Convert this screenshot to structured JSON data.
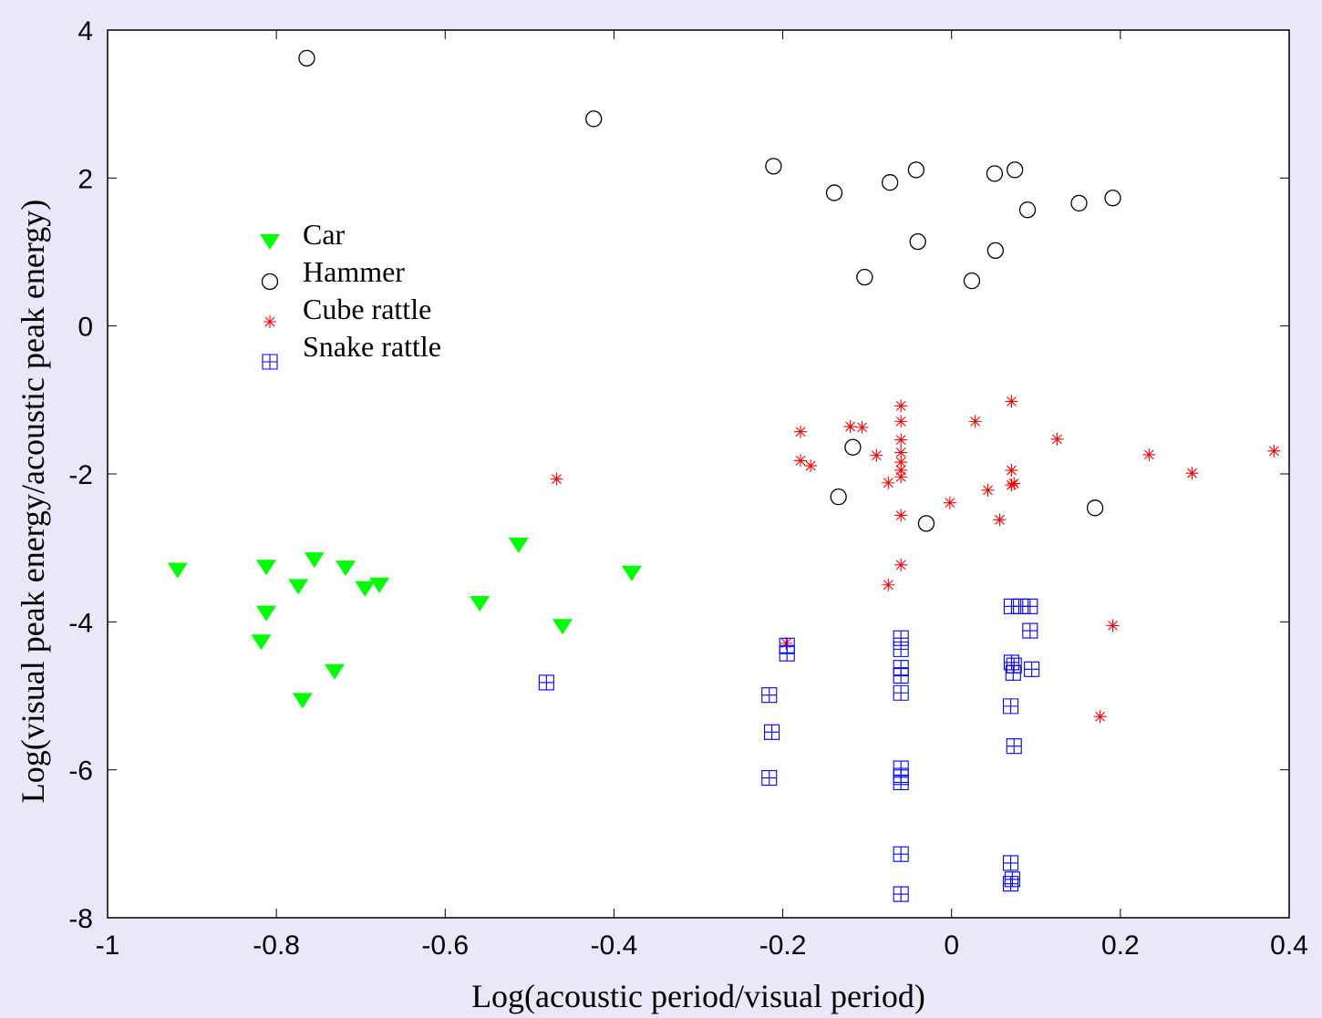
{
  "chart_data": {
    "type": "scatter",
    "xlabel": "Log(acoustic period/visual period)",
    "ylabel": "Log(visual peak energy/acoustic peak energy)",
    "xlim": [
      -1,
      0.4
    ],
    "ylim": [
      -8,
      4
    ],
    "xticks": [
      -1,
      -0.8,
      -0.6,
      -0.4,
      -0.2,
      0,
      0.2,
      0.4
    ],
    "yticks": [
      -8,
      -6,
      -4,
      -2,
      0,
      2,
      4
    ],
    "series": [
      {
        "name": "Car",
        "color": "#00ff00",
        "marker": "triangle-down",
        "x": [
          -0.917,
          -0.812,
          -0.812,
          -0.818,
          -0.774,
          -0.755,
          -0.718,
          -0.695,
          -0.678,
          -0.731,
          -0.769,
          -0.559,
          -0.513,
          -0.461,
          -0.379
        ],
        "values": [
          -3.3,
          -3.26,
          -3.88,
          -4.27,
          -3.52,
          -3.16,
          -3.27,
          -3.55,
          -3.5,
          -4.67,
          -5.06,
          -3.75,
          -2.96,
          -4.06,
          -3.34
        ]
      },
      {
        "name": "Hammer",
        "color": "#000000",
        "marker": "circle",
        "x": [
          -0.764,
          -0.424,
          -0.211,
          -0.139,
          -0.073,
          -0.042,
          0.051,
          0.075,
          0.09,
          0.151,
          0.191,
          -0.04,
          0.052,
          -0.103,
          0.024,
          -0.117,
          -0.134,
          -0.03,
          0.17
        ],
        "values": [
          3.62,
          2.8,
          2.16,
          1.8,
          1.94,
          2.11,
          2.06,
          2.11,
          1.57,
          1.66,
          1.73,
          1.14,
          1.02,
          0.66,
          0.61,
          -1.64,
          -2.31,
          -2.67,
          -2.46
        ]
      },
      {
        "name": "Cube rattle",
        "color": "#ff0000",
        "marker": "star",
        "x": [
          -0.468,
          -0.179,
          -0.179,
          -0.167,
          -0.196,
          -0.12,
          -0.106,
          -0.089,
          -0.075,
          -0.075,
          -0.06,
          -0.06,
          -0.06,
          -0.06,
          -0.06,
          -0.06,
          -0.06,
          -0.06,
          -0.06,
          -0.002,
          0.028,
          0.043,
          0.057,
          0.071,
          0.071,
          0.071,
          0.074,
          0.125,
          0.234,
          0.285,
          0.382,
          0.191,
          0.176
        ],
        "values": [
          -2.07,
          -1.43,
          -1.82,
          -1.89,
          -4.29,
          -1.36,
          -1.37,
          -1.75,
          -2.12,
          -3.5,
          -1.08,
          -1.29,
          -1.54,
          -1.71,
          -1.84,
          -1.95,
          -2.04,
          -2.56,
          -3.23,
          -2.39,
          -1.29,
          -2.22,
          -2.62,
          -1.02,
          -1.95,
          -2.15,
          -2.13,
          -1.53,
          -1.74,
          -1.99,
          -1.69,
          -4.05,
          -5.28
        ]
      },
      {
        "name": "Snake rattle",
        "color": "#0000ff",
        "marker": "square-cross",
        "x": [
          -0.48,
          -0.216,
          -0.213,
          -0.216,
          -0.195,
          -0.195,
          -0.06,
          -0.06,
          -0.06,
          -0.06,
          -0.06,
          -0.06,
          -0.06,
          -0.06,
          -0.06,
          -0.06,
          0.071,
          0.082,
          0.093,
          0.093,
          0.071,
          0.074,
          0.073,
          0.095,
          0.07,
          0.074,
          0.07,
          0.072,
          0.07
        ],
        "values": [
          -4.82,
          -4.99,
          -5.49,
          -6.11,
          -4.32,
          -4.43,
          -4.22,
          -4.37,
          -4.62,
          -4.73,
          -4.96,
          -5.98,
          -6.1,
          -6.17,
          -7.14,
          -7.68,
          -3.79,
          -3.79,
          -3.79,
          -4.12,
          -4.55,
          -4.59,
          -4.69,
          -4.64,
          -5.14,
          -5.68,
          -7.26,
          -7.48,
          -7.54
        ]
      }
    ]
  }
}
